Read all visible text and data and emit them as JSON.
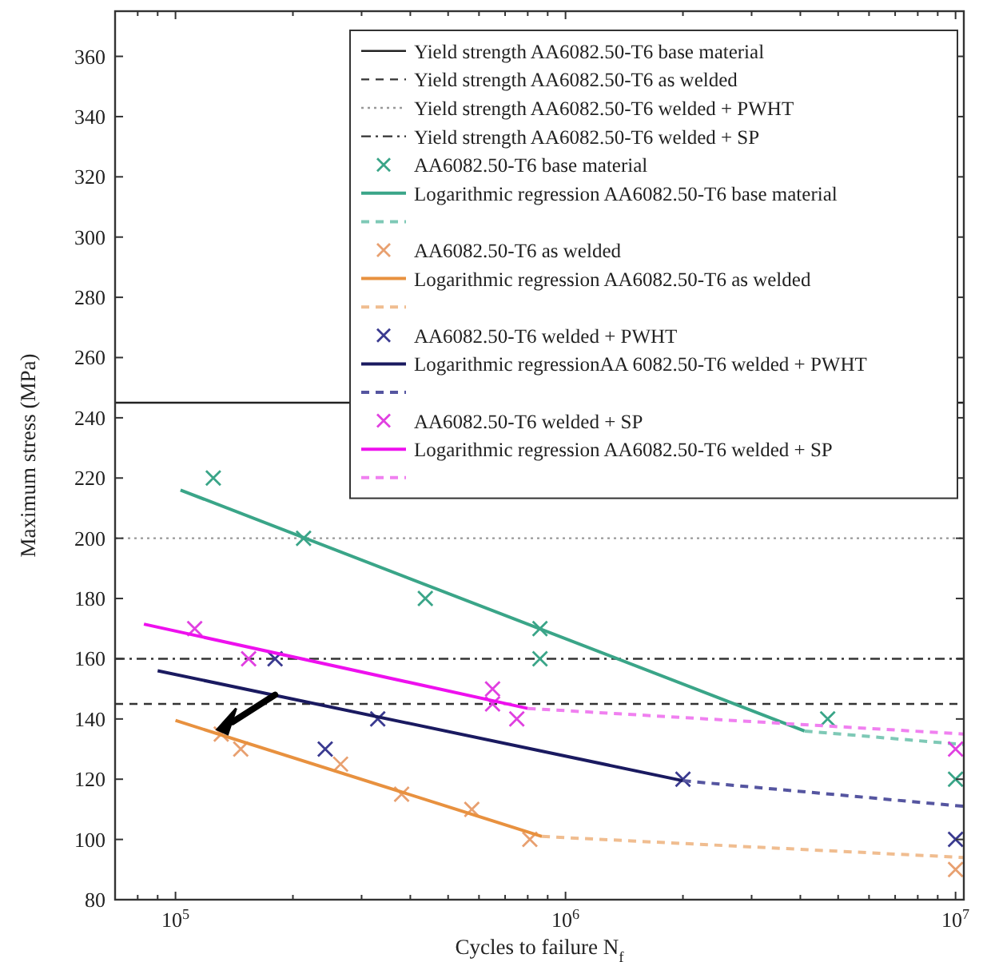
{
  "chart_data": {
    "type": "line",
    "xlabel": "Cycles to failure N$_{f}$",
    "ylabel": "Maximum stress (MPa)",
    "log": "x",
    "xlim": [
      70000,
      10500000
    ],
    "ylim": [
      80,
      375
    ],
    "xticks": [
      {
        "value": 80000,
        "label": null
      },
      {
        "value": 90000,
        "label": null
      },
      {
        "value": 100000,
        "label": "10$^{5}$"
      },
      {
        "value": 200000,
        "label": null
      },
      {
        "value": 300000,
        "label": null
      },
      {
        "value": 400000,
        "label": null
      },
      {
        "value": 500000,
        "label": null
      },
      {
        "value": 600000,
        "label": null
      },
      {
        "value": 700000,
        "label": null
      },
      {
        "value": 800000,
        "label": null
      },
      {
        "value": 900000,
        "label": null
      },
      {
        "value": 1000000,
        "label": "10$^{6}$"
      },
      {
        "value": 2000000,
        "label": null
      },
      {
        "value": 3000000,
        "label": null
      },
      {
        "value": 4000000,
        "label": null
      },
      {
        "value": 5000000,
        "label": null
      },
      {
        "value": 6000000,
        "label": null
      },
      {
        "value": 7000000,
        "label": null
      },
      {
        "value": 8000000,
        "label": null
      },
      {
        "value": 9000000,
        "label": null
      },
      {
        "value": 10000000,
        "label": "10$^{7}$"
      }
    ],
    "yticks": [
      80,
      100,
      120,
      140,
      160,
      180,
      200,
      220,
      240,
      260,
      280,
      300,
      320,
      340,
      360
    ],
    "legend": "top right",
    "grid": false,
    "ref_lines": [
      {
        "axis": "y",
        "value": 245,
        "label": "Yield strength AA6082.50-T6 base material",
        "color": "#222222",
        "line_style": "solid"
      },
      {
        "axis": "y",
        "value": 145,
        "label": "Yield strength AA6082.50-T6 as welded",
        "color": "#333333",
        "line_style": "dashed"
      },
      {
        "axis": "y",
        "value": 200,
        "label": "Yield strength AA6082.50-T6 welded + PWHT",
        "color": "#999999",
        "line_style": "dotted"
      },
      {
        "axis": "y",
        "value": 160,
        "label": "Yield strength AA6082.50-T6 welded + SP",
        "color": "#333333",
        "line_style": "dashdot"
      }
    ],
    "series": [
      {
        "type": "scatter",
        "name": "AA6082.50-T6 base material",
        "color": "#3aa588",
        "marker": "cross",
        "x": [
          125000,
          213000,
          437000,
          860000,
          860000,
          4700000,
          10000000
        ],
        "values": [
          220,
          200,
          180,
          170,
          160,
          140,
          120
        ]
      },
      {
        "name": "Logarithmic regression AA6082.50-T6 base material",
        "color": "#3aa588",
        "line_style": "solid",
        "x": [
          103000,
          4100000
        ],
        "values": [
          216,
          136
        ]
      },
      {
        "color": "#7ec9b6",
        "line_style": "dashed",
        "x": [
          4100000,
          10500000
        ],
        "values": [
          136,
          131.5
        ]
      },
      {
        "type": "scatter",
        "name": "AA6082.50-T6 as welded",
        "color": "#e8a070",
        "marker": "cross",
        "x": [
          131000,
          147000,
          265000,
          380000,
          575000,
          810000,
          10000000
        ],
        "values": [
          135,
          130,
          125,
          115,
          110,
          100,
          90
        ]
      },
      {
        "name": "Logarithmic regression AA6082.50-T6 as welded",
        "color": "#e8913f",
        "line_style": "solid",
        "x": [
          100000,
          870000
        ],
        "values": [
          139.5,
          101
        ]
      },
      {
        "color": "#f0bd90",
        "line_style": "dashed",
        "x": [
          870000,
          10500000
        ],
        "values": [
          101,
          94
        ]
      },
      {
        "type": "scatter",
        "name": "AA6082.50-T6 welded + PWHT",
        "color": "#3a3a90",
        "marker": "cross",
        "x": [
          180000,
          242000,
          330000,
          2000000,
          10000000
        ],
        "values": [
          160,
          130,
          140,
          120,
          100
        ]
      },
      {
        "name": "Logarithmic regressionAA 6082.50-T6 welded + PWHT",
        "color": "#1a1a60",
        "line_style": "solid",
        "x": [
          90000,
          2000000
        ],
        "values": [
          156,
          119.5
        ]
      },
      {
        "color": "#5555a0",
        "line_style": "dashed",
        "x": [
          2000000,
          10500000
        ],
        "values": [
          119.5,
          111
        ]
      },
      {
        "type": "scatter",
        "name": "AA6082.50-T6 welded + SP",
        "color": "#e040e0",
        "marker": "cross",
        "x": [
          112000,
          154000,
          650000,
          650000,
          750000,
          10000000
        ],
        "values": [
          170,
          160,
          150,
          145,
          140,
          130
        ]
      },
      {
        "name": "Logarithmic regression AA6082.50-T6 welded + SP",
        "color": "#ee10ee",
        "line_style": "solid",
        "x": [
          83000,
          800000
        ],
        "values": [
          171.5,
          143.5
        ]
      },
      {
        "color": "#f080f0",
        "line_style": "dashed",
        "x": [
          800000,
          10500000
        ],
        "values": [
          143.5,
          135
        ]
      }
    ]
  }
}
